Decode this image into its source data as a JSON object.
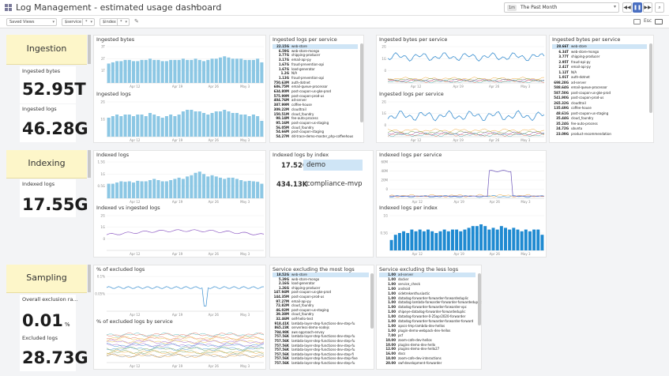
{
  "header": {
    "title": "Log Management - estimated usage dashboard",
    "time_badge": "1m",
    "time_range": "The Past Month",
    "saved_views": "Saved Views",
    "var1_name": "$service",
    "var1_value": "*",
    "var2_name": "$index",
    "var2_value": "*",
    "esc_label": "Esc"
  },
  "sections": {
    "ingestion": "Ingestion",
    "indexing": "Indexing",
    "sampling": "Sampling"
  },
  "kpis": {
    "ingested_bytes_label": "Ingested bytes",
    "ingested_bytes_value": "52.95T",
    "ingested_logs_label": "Ingested logs",
    "ingested_logs_value": "46.28G",
    "indexed_logs_label": "Indexed logs",
    "indexed_logs_value": "17.55G",
    "exclusion_label": "Overall exclusion ra...",
    "exclusion_value": "0.01",
    "exclusion_unit": "%",
    "excluded_label": "Excluded logs",
    "excluded_value": "28.73G"
  },
  "panels": {
    "ingested_bytes": "Ingested bytes",
    "ingested_logs": "Ingested logs",
    "ingested_logs_per_service": "Ingested logs per service",
    "ingested_bytes_per_service_ts": "Ingested bytes per service",
    "ingested_logs_per_service_ts": "Ingested logs per service",
    "ingested_bytes_per_service_list": "Ingested bytes per service",
    "indexed_logs": "Indexed logs",
    "indexed_vs_ingested": "Indexed vs ingested logs",
    "indexed_logs_by_index": "Indexed logs by index",
    "indexed_logs_per_service": "Indexed logs per service",
    "indexed_logs_per_index": "Indexed logs per index",
    "pct_excluded": "% of excluded logs",
    "pct_excluded_by_service": "% of excluded logs by service",
    "svc_excluding_most": "Service excluding the most logs",
    "svc_excluding_less": "Service excluding the less logs"
  },
  "axes": {
    "ib_y": [
      "3T",
      "2T",
      "1T"
    ],
    "il_y": [
      "2G",
      "1G"
    ],
    "ilps_y": [
      "3G",
      "2G",
      "1G"
    ],
    "ibps_y": [
      "2G",
      "1G",
      "0"
    ],
    "idx_y": [
      "1.5G",
      "1G",
      "0.5G"
    ],
    "ivi_y": [
      "2G",
      "1G",
      "0"
    ],
    "idxsvc_y": [
      "60M",
      "40M",
      "20M",
      "0"
    ],
    "idxidx_y": [
      "1G",
      "0.5G"
    ],
    "pct_y": [
      "0.1%",
      "0.05%"
    ],
    "x_dates": [
      "Apr 12",
      "Apr 19",
      "Apr 26",
      "May 3"
    ]
  },
  "lists": {
    "ingested_logs_per_service": [
      [
        "22.15G",
        "web-store"
      ],
      [
        "6.59G",
        "web-store-mongo"
      ],
      [
        "3.77G",
        "shipping-producer"
      ],
      [
        "3.17G",
        "email-api-py"
      ],
      [
        "1.67G",
        "fraud-prevention-api"
      ],
      [
        "1.67G",
        "load-generator"
      ],
      [
        "1.2G",
        "N/A"
      ],
      [
        "1.13G",
        "fraud-prevention-api"
      ],
      [
        "750.63M",
        "auth-dotnet"
      ],
      [
        "686.75M",
        "email-queue-processor"
      ],
      [
        "634.80M",
        "post-coupon-us-gke-prod"
      ],
      [
        "575.99M",
        "post-coupon-prod-us"
      ],
      [
        "404.76M",
        "ad-server"
      ],
      [
        "387.99M",
        "coffee-house"
      ],
      [
        "309.22M",
        "cloudtrail"
      ],
      [
        "150.51M",
        "cloud_foundry"
      ],
      [
        "98.14M",
        "fee-auto-process"
      ],
      [
        "95.16M",
        "post-coupon-us-staging"
      ],
      [
        "56.05M",
        "cloud_foundry"
      ],
      [
        "54.66M",
        "post-coupon-staging"
      ],
      [
        "54.27M",
        "dd-trace-demo-master_php-coffeehous"
      ]
    ],
    "ingested_bytes_per_service": [
      [
        "28.66T",
        "web-store"
      ],
      [
        "6.34T",
        "web-store-mongo"
      ],
      [
        "3.77T",
        "shipping-producer"
      ],
      [
        "2.95T",
        "fraud-api-py"
      ],
      [
        "2.41T",
        "email-api-py"
      ],
      [
        "1.12T",
        "N/A"
      ],
      [
        "1.01T",
        "auth-dotnet"
      ],
      [
        "698.28G",
        "ad-server"
      ],
      [
        "588.64G",
        "email-queue-processor"
      ],
      [
        "587.50G",
        "post-coupon-us-gke-prod"
      ],
      [
        "541.90G",
        "post-coupon-prod-us"
      ],
      [
        "265.32G",
        "cloudtrail"
      ],
      [
        "135.69G",
        "coffee-house"
      ],
      [
        "48.61G",
        "post-coupon-us-staging"
      ],
      [
        "35.44G",
        "cloud_foundry"
      ],
      [
        "35.24G",
        "fee-auto-process"
      ],
      [
        "24.72G",
        "ubuntu"
      ],
      [
        "23.09G",
        "product-recommendation"
      ]
    ],
    "svc_excluding_most": [
      [
        "18.52G",
        "web-store"
      ],
      [
        "5.39G",
        "web-store-mongo"
      ],
      [
        "2.16G",
        "load-generator"
      ],
      [
        "1.26G",
        "shipping-producer"
      ],
      [
        "147.94M",
        "post-coupon-us-gke-prod"
      ],
      [
        "144.35M",
        "post-coupon-prod-us"
      ],
      [
        "97.27M",
        "email-api-py"
      ],
      [
        "72.82M",
        "cloud_foundry"
      ],
      [
        "46.02M",
        "post-coupon-us-staging"
      ],
      [
        "39.38M",
        "cloud_foundry"
      ],
      [
        "32.46M",
        "self-hello-test"
      ],
      [
        "918.41K",
        "lambda-layer-step-functions-dev-step-fu"
      ],
      [
        "865.23K",
        "serverless-demo-nodejs"
      ],
      [
        "784.98K",
        "aws-approach-envoy"
      ],
      [
        "757.56K",
        "lambda-layer-step-functions-dev-step-fu"
      ],
      [
        "757.56K",
        "lambda-layer-step-functions-dev-step-fu"
      ],
      [
        "757.56K",
        "lambda-layer-step-functions-dev-step-fu"
      ],
      [
        "757.56K",
        "lambda-layer-step-functions-dev-step-fu"
      ],
      [
        "757.56K",
        "lambda-layer-step-functions-dev-step-fi"
      ],
      [
        "757.56K",
        "lambda-layer-step-functions-dev-step-five"
      ],
      [
        "757.56K",
        "lambda-layer-step-functions-dev-step-fu"
      ]
    ],
    "svc_excluding_less": [
      [
        "1.00",
        "ad-server"
      ],
      [
        "1.00",
        "docker"
      ],
      [
        "1.00",
        "service_check"
      ],
      [
        "1.00",
        "android"
      ],
      [
        "1.00",
        "sidetrekenthusiastic"
      ],
      [
        "1.00",
        "datadog-forwarder-forwarder-forwardeduplic"
      ],
      [
        "1.00",
        "datadog-lambda-forwarder-forwarder-forwardeduplic"
      ],
      [
        "1.00",
        "datadog-forwarder-forwarder-forwarder-vpc"
      ],
      [
        "1.00",
        "shipeye-datadog-forwarder-forwardeduplic"
      ],
      [
        "1.00",
        "datadog-forwarder-0-25apr2020-forwarder"
      ],
      [
        "1.00",
        "datadog-forwarder-forwarder-forwarder-forward"
      ],
      [
        "1.00",
        "apscs-tmp-lambda-dev-hellos"
      ],
      [
        "1.00",
        "plugin-demo-webpack-dev-hellos"
      ],
      [
        "7.00",
        "pcf"
      ],
      [
        "10.00",
        "zoom-cafe-dev-hellos"
      ],
      [
        "10.00",
        "plugins-demo-dev-hello"
      ],
      [
        "12.00",
        "plugins-demo-dev-hello27"
      ],
      [
        "16.00",
        "docs"
      ],
      [
        "18.00",
        "zoom-cafe-dev-interactions"
      ],
      [
        "20.00",
        "swf-development-forwarder"
      ]
    ]
  },
  "index_table": [
    {
      "value": "17.52G",
      "name": "demo"
    },
    {
      "value": "434.13K",
      "name": "compliance-mvp"
    }
  ],
  "series": {
    "ingested_bytes_bars": [
      1.6,
      1.7,
      1.8,
      1.8,
      1.9,
      1.9,
      1.8,
      1.8,
      1.9,
      1.9,
      2.0,
      1.9,
      1.9,
      1.8,
      1.8,
      1.9,
      1.9,
      1.9,
      2.0,
      1.9,
      1.9,
      2.0,
      1.9,
      1.8,
      1.9,
      2.0,
      2.0,
      2.1,
      2.2,
      2.1,
      2.0,
      2.0,
      2.0,
      1.9,
      1.9,
      1.9,
      2.0,
      1.7
    ],
    "ingested_logs_bars": [
      1.2,
      1.3,
      1.4,
      1.3,
      1.4,
      1.4,
      1.3,
      1.4,
      1.4,
      1.3,
      1.5,
      1.4,
      1.3,
      1.2,
      1.3,
      1.4,
      1.3,
      1.4,
      1.6,
      1.7,
      1.7,
      1.6,
      1.6,
      1.5,
      1.4,
      1.5,
      1.6,
      1.6,
      1.7,
      1.6,
      1.5,
      1.5,
      1.4,
      1.4,
      1.3,
      1.4,
      1.3,
      1.0
    ],
    "indexed_logs_bars": [
      0.6,
      0.6,
      0.65,
      0.7,
      0.68,
      0.7,
      0.65,
      0.72,
      0.7,
      0.7,
      0.75,
      0.8,
      0.75,
      0.7,
      0.7,
      0.75,
      0.8,
      0.85,
      0.8,
      0.9,
      0.95,
      1.05,
      1.1,
      1.0,
      0.9,
      0.95,
      0.9,
      0.85,
      0.8,
      0.85,
      0.85,
      0.8,
      0.75,
      0.7,
      0.72,
      0.7,
      0.68,
      0.6
    ],
    "indexed_per_index_bars": [
      0.3,
      0.45,
      0.5,
      0.55,
      0.5,
      0.6,
      0.55,
      0.6,
      0.55,
      0.6,
      0.55,
      0.5,
      0.55,
      0.6,
      0.55,
      0.6,
      0.6,
      0.55,
      0.6,
      0.65,
      0.7,
      0.7,
      0.75,
      0.7,
      0.6,
      0.65,
      0.6,
      0.7,
      0.65,
      0.6,
      0.65,
      0.6,
      0.55,
      0.6,
      0.55,
      0.6,
      0.6,
      0.45
    ]
  }
}
